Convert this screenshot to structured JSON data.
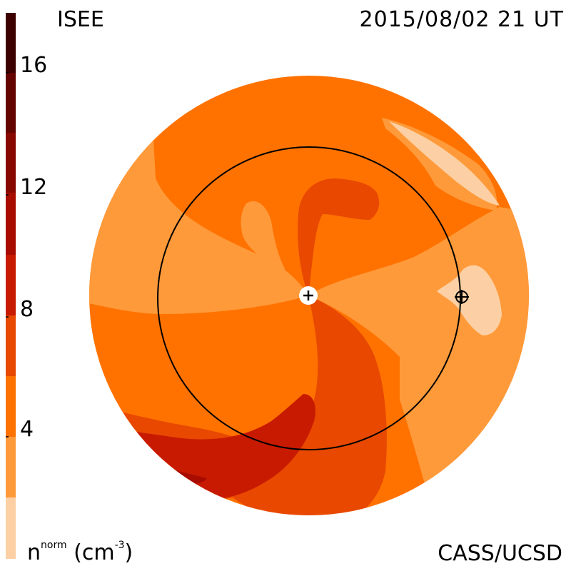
{
  "header": {
    "brand": "ISEE",
    "timestamp": "2015/08/02 21 UT"
  },
  "footer": {
    "credit": "CASS/UCSD",
    "units_base": "n",
    "units_sup": "norm",
    "units_paren_open": "(cm",
    "units_paren_sup": "-3",
    "units_paren_close": ")"
  },
  "colorbar": {
    "ticks": [
      {
        "value": 16,
        "label": "16"
      },
      {
        "value": 12,
        "label": "12"
      },
      {
        "value": 8,
        "label": "8"
      },
      {
        "value": 4,
        "label": "4"
      }
    ],
    "range": [
      0,
      18
    ],
    "colors": [
      "#fcd0a4",
      "#ff9a3a",
      "#ff7200",
      "#e84800",
      "#c81a00",
      "#a80c00",
      "#860800",
      "#640400",
      "#3c0000"
    ]
  },
  "map": {
    "colors": {
      "level_light": "#fcd0a4",
      "level_1": "#ff9a3a",
      "level_2": "#ff7200",
      "level_3": "#e84800",
      "level_4": "#c81a00",
      "level_5": "#a80c00"
    },
    "markers": {
      "sun": "sun-plus-marker",
      "earth": "earth-marker"
    }
  }
}
